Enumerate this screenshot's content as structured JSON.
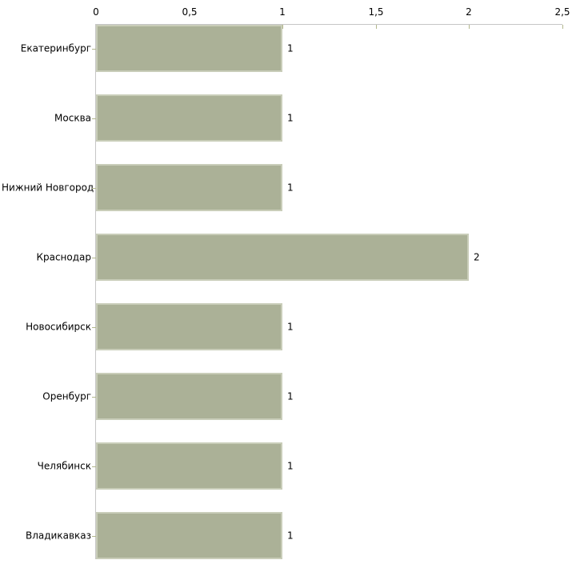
{
  "chart_data": {
    "type": "bar",
    "orientation": "horizontal",
    "title": "",
    "categories": [
      "Екатеринбург",
      "Москва",
      "Нижний Новгород",
      "Краснодар",
      "Новосибирск",
      "Оренбург",
      "Челябинск",
      "Владикавказ"
    ],
    "values": [
      1,
      1,
      1,
      2,
      1,
      1,
      1,
      1
    ],
    "value_labels": [
      "1",
      "1",
      "1",
      "2",
      "1",
      "1",
      "1",
      "1"
    ],
    "x_ticks": [
      0,
      0.5,
      1,
      1.5,
      2,
      2.5
    ],
    "x_tick_labels": [
      "0",
      "0,5",
      "1",
      "1,5",
      "2",
      "2,5"
    ],
    "xlim": [
      0,
      2.5
    ],
    "xlabel": "",
    "ylabel": "",
    "grid": false,
    "legend": false,
    "axis_position": "top-left",
    "value_labels_visible": true,
    "colors": {
      "background": "#ffffff",
      "bar_fill": "#abb197",
      "bar_border": "#c9cdb9",
      "axis_line": "#c6c6c6",
      "tick_mark": "#b2b78c",
      "text": "#000000"
    }
  }
}
